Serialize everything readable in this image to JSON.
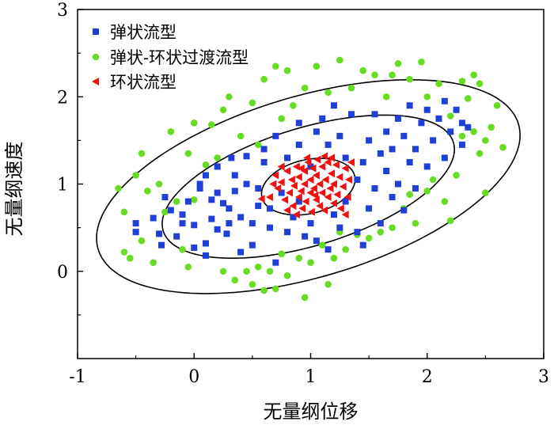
{
  "chart_data": {
    "type": "scatter",
    "title": "",
    "xlabel": "无量纲位移",
    "ylabel": "无量纲速度",
    "xlim": [
      -1,
      3
    ],
    "ylim": [
      -1,
      3
    ],
    "xticks": [
      "-1",
      "0",
      "1",
      "2",
      "3"
    ],
    "yticks": [
      "0",
      "1",
      "2",
      "3"
    ],
    "grid": false,
    "legend_position": "top-left",
    "ellipses": [
      {
        "name": "inner",
        "center": [
          0.98,
          0.97
        ],
        "semi_axes": [
          0.42,
          0.3
        ],
        "angle_deg": 25
      },
      {
        "name": "middle",
        "center": [
          0.98,
          0.97
        ],
        "semi_axes": [
          1.35,
          0.65
        ],
        "angle_deg": 25
      },
      {
        "name": "outer",
        "center": [
          0.98,
          0.97
        ],
        "semi_axes": [
          1.95,
          1.0
        ],
        "angle_deg": 25
      }
    ],
    "series": [
      {
        "name": "弹状流型",
        "marker": "square",
        "color": "#1f3fd6",
        "points": [
          [
            -0.5,
            0.55
          ],
          [
            -0.5,
            0.45
          ],
          [
            -0.35,
            0.61
          ],
          [
            -0.3,
            0.43
          ],
          [
            -0.28,
            0.3
          ],
          [
            -0.2,
            0.7
          ],
          [
            -0.1,
            0.65
          ],
          [
            -0.1,
            0.55
          ],
          [
            -0.15,
            0.4
          ],
          [
            -0.05,
            0.8
          ],
          [
            0.0,
            0.27
          ],
          [
            0.0,
            0.53
          ],
          [
            0.05,
            0.95
          ],
          [
            0.05,
            1.0
          ],
          [
            0.1,
            0.18
          ],
          [
            0.1,
            0.32
          ],
          [
            0.15,
            0.6
          ],
          [
            0.15,
            0.82
          ],
          [
            0.2,
            0.48
          ],
          [
            0.2,
            1.2
          ],
          [
            0.25,
            0.78
          ],
          [
            0.28,
            0.43
          ],
          [
            0.3,
            0.72
          ],
          [
            0.3,
            0.55
          ],
          [
            0.35,
            0.92
          ],
          [
            0.35,
            1.1
          ],
          [
            0.4,
            0.22
          ],
          [
            0.4,
            0.62
          ],
          [
            0.45,
            1.0
          ],
          [
            0.45,
            1.32
          ],
          [
            0.5,
            0.3
          ],
          [
            0.5,
            0.55
          ],
          [
            0.55,
            0.75
          ],
          [
            0.55,
            0.95
          ],
          [
            0.6,
            1.25
          ],
          [
            0.6,
            1.4
          ],
          [
            0.65,
            0.5
          ],
          [
            0.65,
            0.72
          ],
          [
            0.7,
            0.1
          ],
          [
            0.75,
            0.9
          ],
          [
            0.8,
            0.45
          ],
          [
            0.8,
            1.3
          ],
          [
            0.85,
            0.62
          ],
          [
            0.9,
            0.8
          ],
          [
            0.9,
            1.45
          ],
          [
            0.95,
            0.4
          ],
          [
            1.0,
            1.2
          ],
          [
            1.0,
            0.55
          ],
          [
            1.05,
            1.6
          ],
          [
            1.05,
            0.35
          ],
          [
            1.1,
            1.75
          ],
          [
            1.15,
            0.25
          ],
          [
            1.2,
            0.65
          ],
          [
            1.25,
            1.55
          ],
          [
            1.25,
            0.5
          ],
          [
            1.3,
            0.8
          ],
          [
            1.3,
            1.3
          ],
          [
            1.35,
            1.8
          ],
          [
            1.4,
            0.45
          ],
          [
            1.4,
            1.05
          ],
          [
            1.45,
            1.25
          ],
          [
            1.5,
            0.72
          ],
          [
            1.5,
            1.5
          ],
          [
            1.55,
            1.8
          ],
          [
            1.55,
            0.95
          ],
          [
            1.6,
            1.35
          ],
          [
            1.6,
            0.55
          ],
          [
            1.65,
            1.15
          ],
          [
            1.65,
            1.6
          ],
          [
            1.7,
            0.85
          ],
          [
            1.7,
            1.4
          ],
          [
            1.75,
            1.75
          ],
          [
            1.75,
            1.0
          ],
          [
            1.8,
            1.55
          ],
          [
            1.8,
            0.7
          ],
          [
            1.85,
            1.25
          ],
          [
            1.85,
            1.9
          ],
          [
            1.9,
            1.4
          ],
          [
            1.95,
            1.7
          ],
          [
            2.0,
            1.2
          ],
          [
            2.0,
            1.85
          ],
          [
            2.05,
            1.5
          ],
          [
            2.1,
            1.75
          ],
          [
            2.15,
            1.3
          ],
          [
            2.2,
            1.6
          ],
          [
            2.25,
            1.85
          ],
          [
            2.3,
            1.45
          ],
          [
            2.3,
            1.7
          ],
          [
            2.35,
            1.65
          ],
          [
            1.2,
            1.9
          ],
          [
            0.9,
            1.7
          ],
          [
            0.7,
            1.55
          ],
          [
            1.45,
            0.3
          ],
          [
            0.2,
            0.9
          ],
          [
            0.1,
            1.1
          ],
          [
            -0.25,
            0.85
          ],
          [
            0.32,
            1.3
          ],
          [
            1.9,
            0.95
          ],
          [
            2.15,
            1.95
          ],
          [
            1.15,
            1.45
          ]
        ]
      },
      {
        "name": "弹状-环状过渡流型",
        "marker": "circle",
        "color": "#66dd22",
        "points": [
          [
            -0.65,
            0.95
          ],
          [
            -0.6,
            0.68
          ],
          [
            -0.6,
            0.22
          ],
          [
            -0.55,
            0.15
          ],
          [
            -0.5,
            1.1
          ],
          [
            -0.45,
            1.35
          ],
          [
            -0.45,
            0.35
          ],
          [
            -0.4,
            0.92
          ],
          [
            -0.35,
            0.1
          ],
          [
            -0.3,
            1.0
          ],
          [
            -0.25,
            0.68
          ],
          [
            -0.2,
            1.6
          ],
          [
            -0.15,
            0.8
          ],
          [
            -0.1,
            0.25
          ],
          [
            -0.05,
            1.35
          ],
          [
            -0.05,
            0.05
          ],
          [
            0.0,
            1.7
          ],
          [
            0.0,
            0.82
          ],
          [
            0.1,
            1.22
          ],
          [
            0.15,
            1.68
          ],
          [
            0.2,
            1.3
          ],
          [
            0.25,
            1.85
          ],
          [
            0.25,
            0.0
          ],
          [
            0.3,
            2.0
          ],
          [
            0.35,
            -0.1
          ],
          [
            0.4,
            1.55
          ],
          [
            0.45,
            0.0
          ],
          [
            0.5,
            1.93
          ],
          [
            0.5,
            -0.15
          ],
          [
            0.55,
            1.45
          ],
          [
            0.6,
            2.2
          ],
          [
            0.6,
            -0.22
          ],
          [
            0.65,
            0.0
          ],
          [
            0.7,
            -0.2
          ],
          [
            0.75,
            0.2
          ],
          [
            0.75,
            1.75
          ],
          [
            0.8,
            2.3
          ],
          [
            0.8,
            -0.05
          ],
          [
            0.85,
            1.9
          ],
          [
            0.9,
            0.15
          ],
          [
            0.95,
            2.1
          ],
          [
            1.0,
            0.1
          ],
          [
            1.05,
            2.35
          ],
          [
            1.1,
            0.3
          ],
          [
            1.15,
            2.05
          ],
          [
            1.2,
            0.15
          ],
          [
            1.25,
            2.42
          ],
          [
            1.3,
            0.25
          ],
          [
            1.35,
            2.1
          ],
          [
            1.4,
            0.42
          ],
          [
            1.45,
            2.3
          ],
          [
            1.5,
            0.38
          ],
          [
            1.55,
            2.25
          ],
          [
            1.6,
            0.45
          ],
          [
            1.65,
            2.0
          ],
          [
            1.7,
            0.5
          ],
          [
            1.75,
            2.38
          ],
          [
            1.8,
            0.72
          ],
          [
            1.85,
            2.2
          ],
          [
            1.9,
            0.55
          ],
          [
            1.95,
            2.4
          ],
          [
            2.0,
            0.92
          ],
          [
            2.0,
            2.0
          ],
          [
            2.05,
            1.05
          ],
          [
            2.1,
            2.15
          ],
          [
            2.15,
            0.8
          ],
          [
            2.2,
            1.78
          ],
          [
            2.25,
            1.1
          ],
          [
            2.3,
            1.55
          ],
          [
            2.35,
            1.98
          ],
          [
            2.4,
            1.6
          ],
          [
            2.45,
            1.35
          ],
          [
            2.45,
            2.15
          ],
          [
            2.5,
            1.5
          ],
          [
            2.55,
            1.65
          ],
          [
            2.6,
            1.9
          ],
          [
            2.65,
            1.42
          ],
          [
            2.5,
            0.9
          ],
          [
            2.4,
            2.25
          ],
          [
            2.3,
            2.18
          ],
          [
            1.15,
            -0.15
          ],
          [
            0.95,
            -0.3
          ],
          [
            1.25,
            0.45
          ],
          [
            0.55,
            0.05
          ],
          [
            1.85,
            0.88
          ],
          [
            2.2,
            0.58
          ],
          [
            1.7,
            2.25
          ],
          [
            0.7,
            2.35
          ]
        ]
      },
      {
        "name": "环状流型",
        "marker": "triangle-left",
        "color": "#ee1111",
        "points": [
          [
            0.65,
            0.85
          ],
          [
            0.7,
            1.1
          ],
          [
            0.72,
            0.95
          ],
          [
            0.75,
            1.02
          ],
          [
            0.78,
            0.82
          ],
          [
            0.8,
            1.15
          ],
          [
            0.82,
            0.9
          ],
          [
            0.84,
            1.05
          ],
          [
            0.85,
            0.75
          ],
          [
            0.86,
            0.98
          ],
          [
            0.88,
            1.2
          ],
          [
            0.9,
            0.85
          ],
          [
            0.9,
            1.08
          ],
          [
            0.92,
            0.92
          ],
          [
            0.93,
            0.72
          ],
          [
            0.95,
            1.15
          ],
          [
            0.95,
            1.0
          ],
          [
            0.96,
            0.8
          ],
          [
            0.98,
            1.25
          ],
          [
            1.0,
            0.9
          ],
          [
            1.0,
            1.05
          ],
          [
            1.01,
            0.68
          ],
          [
            1.02,
            1.18
          ],
          [
            1.03,
            0.95
          ],
          [
            1.05,
            0.82
          ],
          [
            1.05,
            1.1
          ],
          [
            1.06,
            1.28
          ],
          [
            1.08,
            0.75
          ],
          [
            1.08,
            1.0
          ],
          [
            1.1,
            0.9
          ],
          [
            1.1,
            1.2
          ],
          [
            1.12,
            0.7
          ],
          [
            1.13,
            1.05
          ],
          [
            1.15,
            0.85
          ],
          [
            1.15,
            1.25
          ],
          [
            1.17,
            0.95
          ],
          [
            1.18,
            1.12
          ],
          [
            1.2,
            0.78
          ],
          [
            1.2,
            1.0
          ],
          [
            1.22,
            1.22
          ],
          [
            1.23,
            0.88
          ],
          [
            1.25,
            1.08
          ],
          [
            1.26,
            0.72
          ],
          [
            1.28,
            0.97
          ],
          [
            1.3,
            1.18
          ],
          [
            1.32,
            0.85
          ],
          [
            1.33,
            1.05
          ],
          [
            1.35,
            1.25
          ],
          [
            1.3,
            0.65
          ],
          [
            0.8,
            0.7
          ],
          [
            0.75,
            1.2
          ],
          [
            0.68,
            1.0
          ],
          [
            0.88,
            0.65
          ],
          [
            0.97,
            1.3
          ],
          [
            1.12,
            1.32
          ],
          [
            0.92,
            1.18
          ],
          [
            1.04,
            0.87
          ],
          [
            1.18,
            1.3
          ],
          [
            0.58,
            0.83
          ]
        ]
      }
    ]
  }
}
